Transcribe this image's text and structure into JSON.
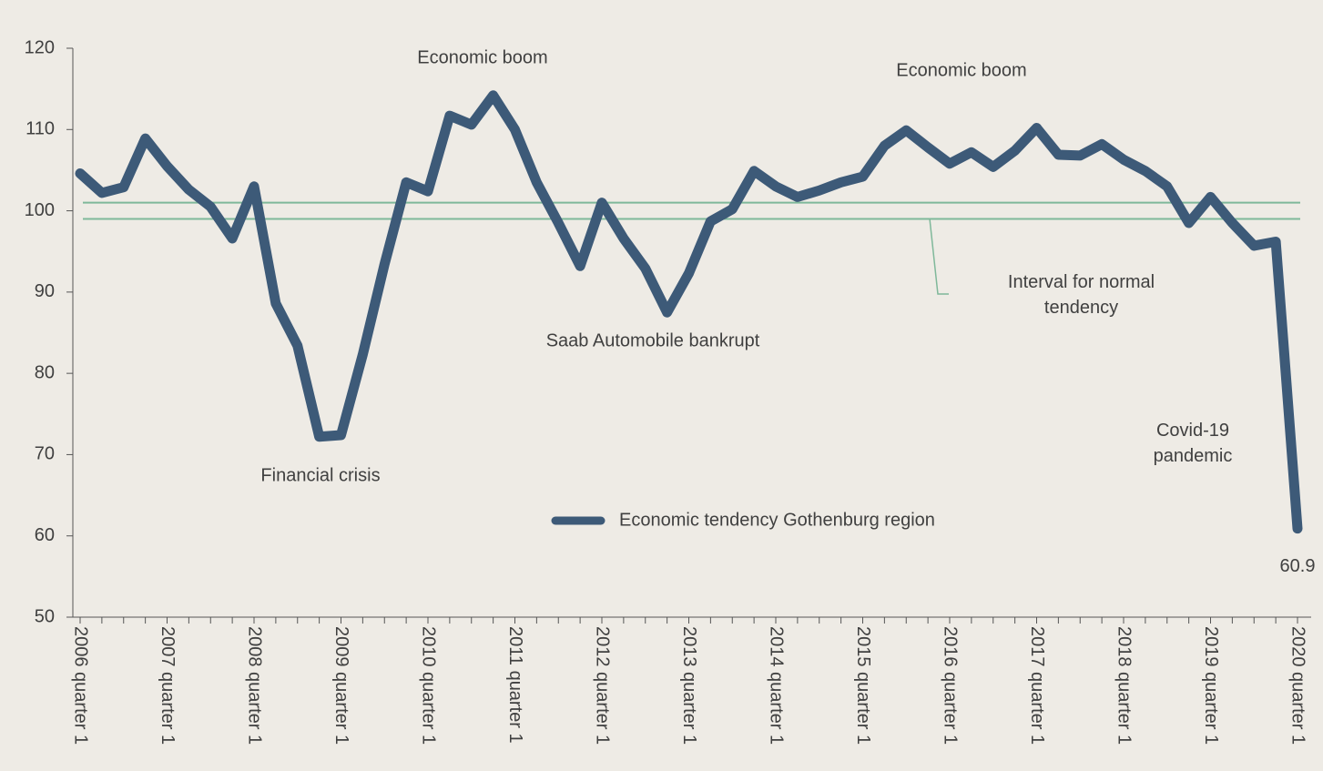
{
  "chart_data": {
    "type": "line",
    "categories": [
      "2006 quarter 1",
      null,
      null,
      null,
      "2007 quarter 1",
      null,
      null,
      null,
      "2008 quarter 1",
      null,
      null,
      null,
      "2009 quarter 1",
      null,
      null,
      null,
      "2010 quarter 1",
      null,
      null,
      null,
      "2011 quarter 1",
      null,
      null,
      null,
      "2012 quarter 1",
      null,
      null,
      null,
      "2013 quarter 1",
      null,
      null,
      null,
      "2014 quarter 1",
      null,
      null,
      null,
      "2015 quarter 1",
      null,
      null,
      null,
      "2016 quarter 1",
      null,
      null,
      null,
      "2017 quarter 1",
      null,
      null,
      null,
      "2018 quarter 1",
      null,
      null,
      null,
      "2019 quarter 1",
      null,
      null,
      null,
      "2020 quarter 1"
    ],
    "series": [
      {
        "name": "Economic tendency Gothenburg region",
        "color": "#3d5a78",
        "values": [
          104.6,
          102.2,
          102.9,
          108.9,
          105.5,
          102.6,
          100.5,
          96.6,
          103,
          88.6,
          83.4,
          72.2,
          72.4,
          82.3,
          93.4,
          103.5,
          102.4,
          111.7,
          110.6,
          114.2,
          110,
          103.5,
          98.5,
          93.2,
          101,
          96.6,
          92.9,
          87.5,
          92.3,
          98.7,
          100.2,
          104.9,
          103,
          101.7,
          102.5,
          103.5,
          104.2,
          108,
          109.9,
          107.8,
          105.8,
          107.2,
          105.4,
          107.4,
          110.2,
          106.9,
          106.8,
          108.2,
          106.3,
          104.9,
          103,
          98.5,
          101.7,
          98.5,
          95.7,
          96.2,
          60.9
        ]
      }
    ],
    "ylim": [
      50,
      120
    ],
    "yticks": [
      50,
      60,
      70,
      80,
      90,
      100,
      110,
      120
    ],
    "reference_lines": [
      101,
      99
    ],
    "reference_color": "#7fb89a",
    "annotations": [
      "Economic boom",
      "Economic boom",
      "Financial crisis",
      "Saab Automobile bankrupt",
      "Interval for normal tendency",
      "Covid-19 pandemic"
    ]
  }
}
